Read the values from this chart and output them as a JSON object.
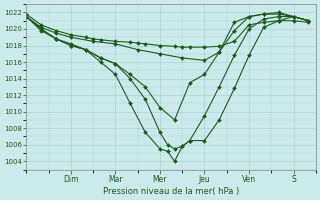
{
  "title": "",
  "xlabel": "Pression niveau de la mer( hPa )",
  "ylabel": "",
  "bg_color": "#cceaec",
  "line_color": "#1a5c1a",
  "grid_color": "#aad4d8",
  "ylim": [
    1003.0,
    1023.0
  ],
  "yticks": [
    1004,
    1006,
    1008,
    1010,
    1012,
    1014,
    1016,
    1018,
    1020,
    1022
  ],
  "day_labels": [
    "Dim",
    "Mar",
    "Mer",
    "Jeu",
    "Ven",
    "S"
  ],
  "day_positions": [
    1,
    2,
    3,
    4,
    5,
    6
  ],
  "xlim": [
    0,
    6.5
  ],
  "lines": [
    {
      "x": [
        0.0,
        0.33,
        0.67,
        1.0,
        1.33,
        1.5,
        1.67,
        2.0,
        2.33,
        2.5,
        2.67,
        3.0,
        3.33,
        3.5,
        3.67,
        4.0,
        4.33,
        4.67,
        5.0,
        5.33,
        5.67,
        6.0,
        6.33
      ],
      "y": [
        1021.8,
        1020.5,
        1019.8,
        1019.3,
        1019.0,
        1018.8,
        1018.7,
        1018.5,
        1018.4,
        1018.3,
        1018.2,
        1018.0,
        1017.9,
        1017.8,
        1017.8,
        1017.8,
        1017.9,
        1018.5,
        1020.5,
        1020.8,
        1021.0,
        1021.0,
        1020.8
      ]
    },
    {
      "x": [
        0.0,
        0.33,
        0.67,
        1.0,
        1.5,
        2.0,
        2.5,
        3.0,
        3.5,
        4.0,
        4.33,
        4.67,
        5.0,
        5.33,
        5.67,
        6.0,
        6.33
      ],
      "y": [
        1021.5,
        1020.2,
        1019.5,
        1019.0,
        1018.5,
        1018.2,
        1017.5,
        1017.0,
        1016.5,
        1016.2,
        1017.2,
        1019.8,
        1021.5,
        1021.8,
        1022.0,
        1021.5,
        1021.0
      ]
    },
    {
      "x": [
        0.0,
        0.33,
        0.67,
        1.0,
        1.33,
        1.67,
        2.0,
        2.33,
        2.67,
        3.0,
        3.17,
        3.33,
        3.5,
        3.67,
        4.0,
        4.33,
        4.67,
        5.0,
        5.33,
        5.67,
        6.0,
        6.33
      ],
      "y": [
        1021.5,
        1020.0,
        1018.8,
        1018.0,
        1017.5,
        1016.5,
        1015.8,
        1014.0,
        1011.5,
        1007.5,
        1006.0,
        1005.5,
        1005.8,
        1006.5,
        1009.5,
        1013.0,
        1016.8,
        1020.0,
        1021.2,
        1021.5,
        1021.5,
        1021.0
      ]
    },
    {
      "x": [
        0.0,
        0.33,
        0.67,
        1.0,
        1.33,
        1.67,
        2.0,
        2.33,
        2.67,
        3.0,
        3.17,
        3.33,
        3.5,
        3.67,
        4.0,
        4.33,
        4.67,
        5.0,
        5.33,
        5.67,
        6.0,
        6.33
      ],
      "y": [
        1021.5,
        1020.0,
        1018.8,
        1018.0,
        1017.5,
        1016.0,
        1014.5,
        1011.0,
        1007.5,
        1005.5,
        1005.2,
        1004.0,
        1005.8,
        1006.5,
        1006.5,
        1009.0,
        1012.8,
        1016.8,
        1020.2,
        1021.0,
        1021.5,
        1021.0
      ]
    },
    {
      "x": [
        0.0,
        0.33,
        0.67,
        1.0,
        1.33,
        1.67,
        2.0,
        2.33,
        2.67,
        3.0,
        3.33,
        3.67,
        4.0,
        4.33,
        4.67,
        5.0,
        5.33,
        5.67,
        6.0,
        6.33
      ],
      "y": [
        1021.5,
        1019.8,
        1018.8,
        1018.2,
        1017.5,
        1016.5,
        1015.8,
        1014.5,
        1013.0,
        1010.5,
        1009.0,
        1013.5,
        1014.5,
        1017.2,
        1020.8,
        1021.5,
        1021.8,
        1021.8,
        1021.5,
        1021.0
      ]
    }
  ]
}
